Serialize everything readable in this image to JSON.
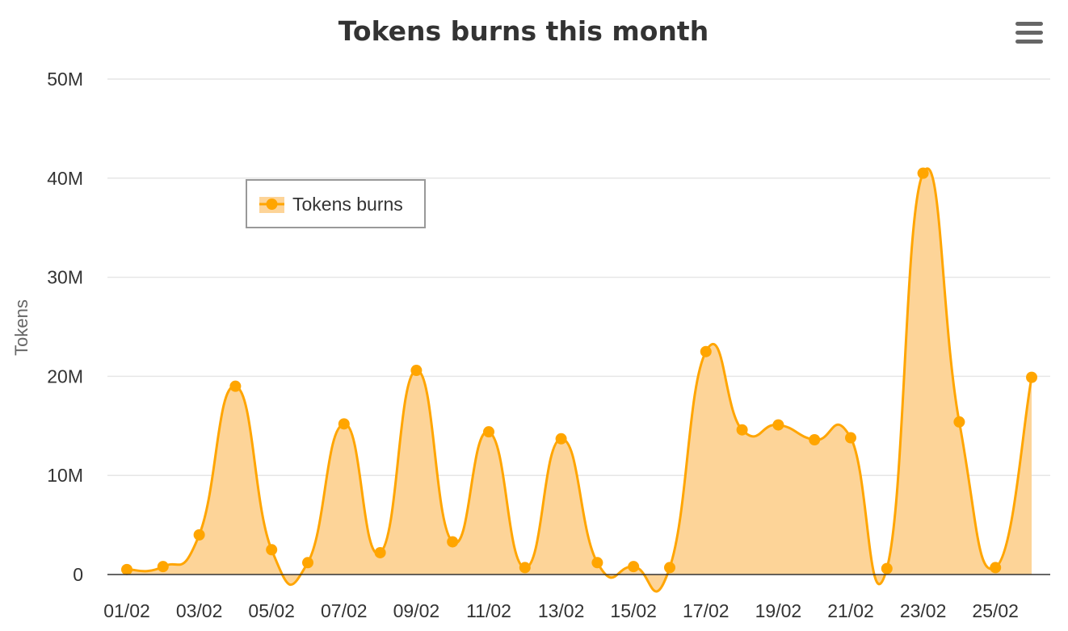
{
  "chart_data": {
    "type": "area",
    "title": "Tokens burns this month",
    "ylabel": "Tokens",
    "xlabel": "",
    "ylim": [
      0,
      50000000
    ],
    "y_ticks": [
      0,
      10000000,
      20000000,
      30000000,
      40000000,
      50000000
    ],
    "y_tick_labels": [
      "0",
      "10M",
      "20M",
      "30M",
      "40M",
      "50M"
    ],
    "x": [
      "01/02",
      "02/02",
      "03/02",
      "04/02",
      "05/02",
      "06/02",
      "07/02",
      "08/02",
      "09/02",
      "10/02",
      "11/02",
      "12/02",
      "13/02",
      "14/02",
      "15/02",
      "16/02",
      "17/02",
      "18/02",
      "19/02",
      "20/02",
      "21/02",
      "22/02",
      "23/02",
      "24/02",
      "25/02",
      "26/02"
    ],
    "x_tick_labels": [
      "01/02",
      "03/02",
      "05/02",
      "07/02",
      "09/02",
      "11/02",
      "13/02",
      "15/02",
      "17/02",
      "19/02",
      "21/02",
      "23/02",
      "25/02"
    ],
    "series": [
      {
        "name": "Tokens burns",
        "color": "#ffa500",
        "fill_color": "#fdd498",
        "values": [
          500000,
          800000,
          4000000,
          19000000,
          2500000,
          1200000,
          15200000,
          2200000,
          20600000,
          3300000,
          14400000,
          700000,
          13700000,
          1200000,
          800000,
          700000,
          22500000,
          14600000,
          15100000,
          13600000,
          13800000,
          600000,
          40500000,
          15400000,
          700000,
          19900000
        ]
      }
    ],
    "grid": true,
    "legend_position": "top-left"
  },
  "menu": {
    "icon": "hamburger-menu-icon"
  }
}
